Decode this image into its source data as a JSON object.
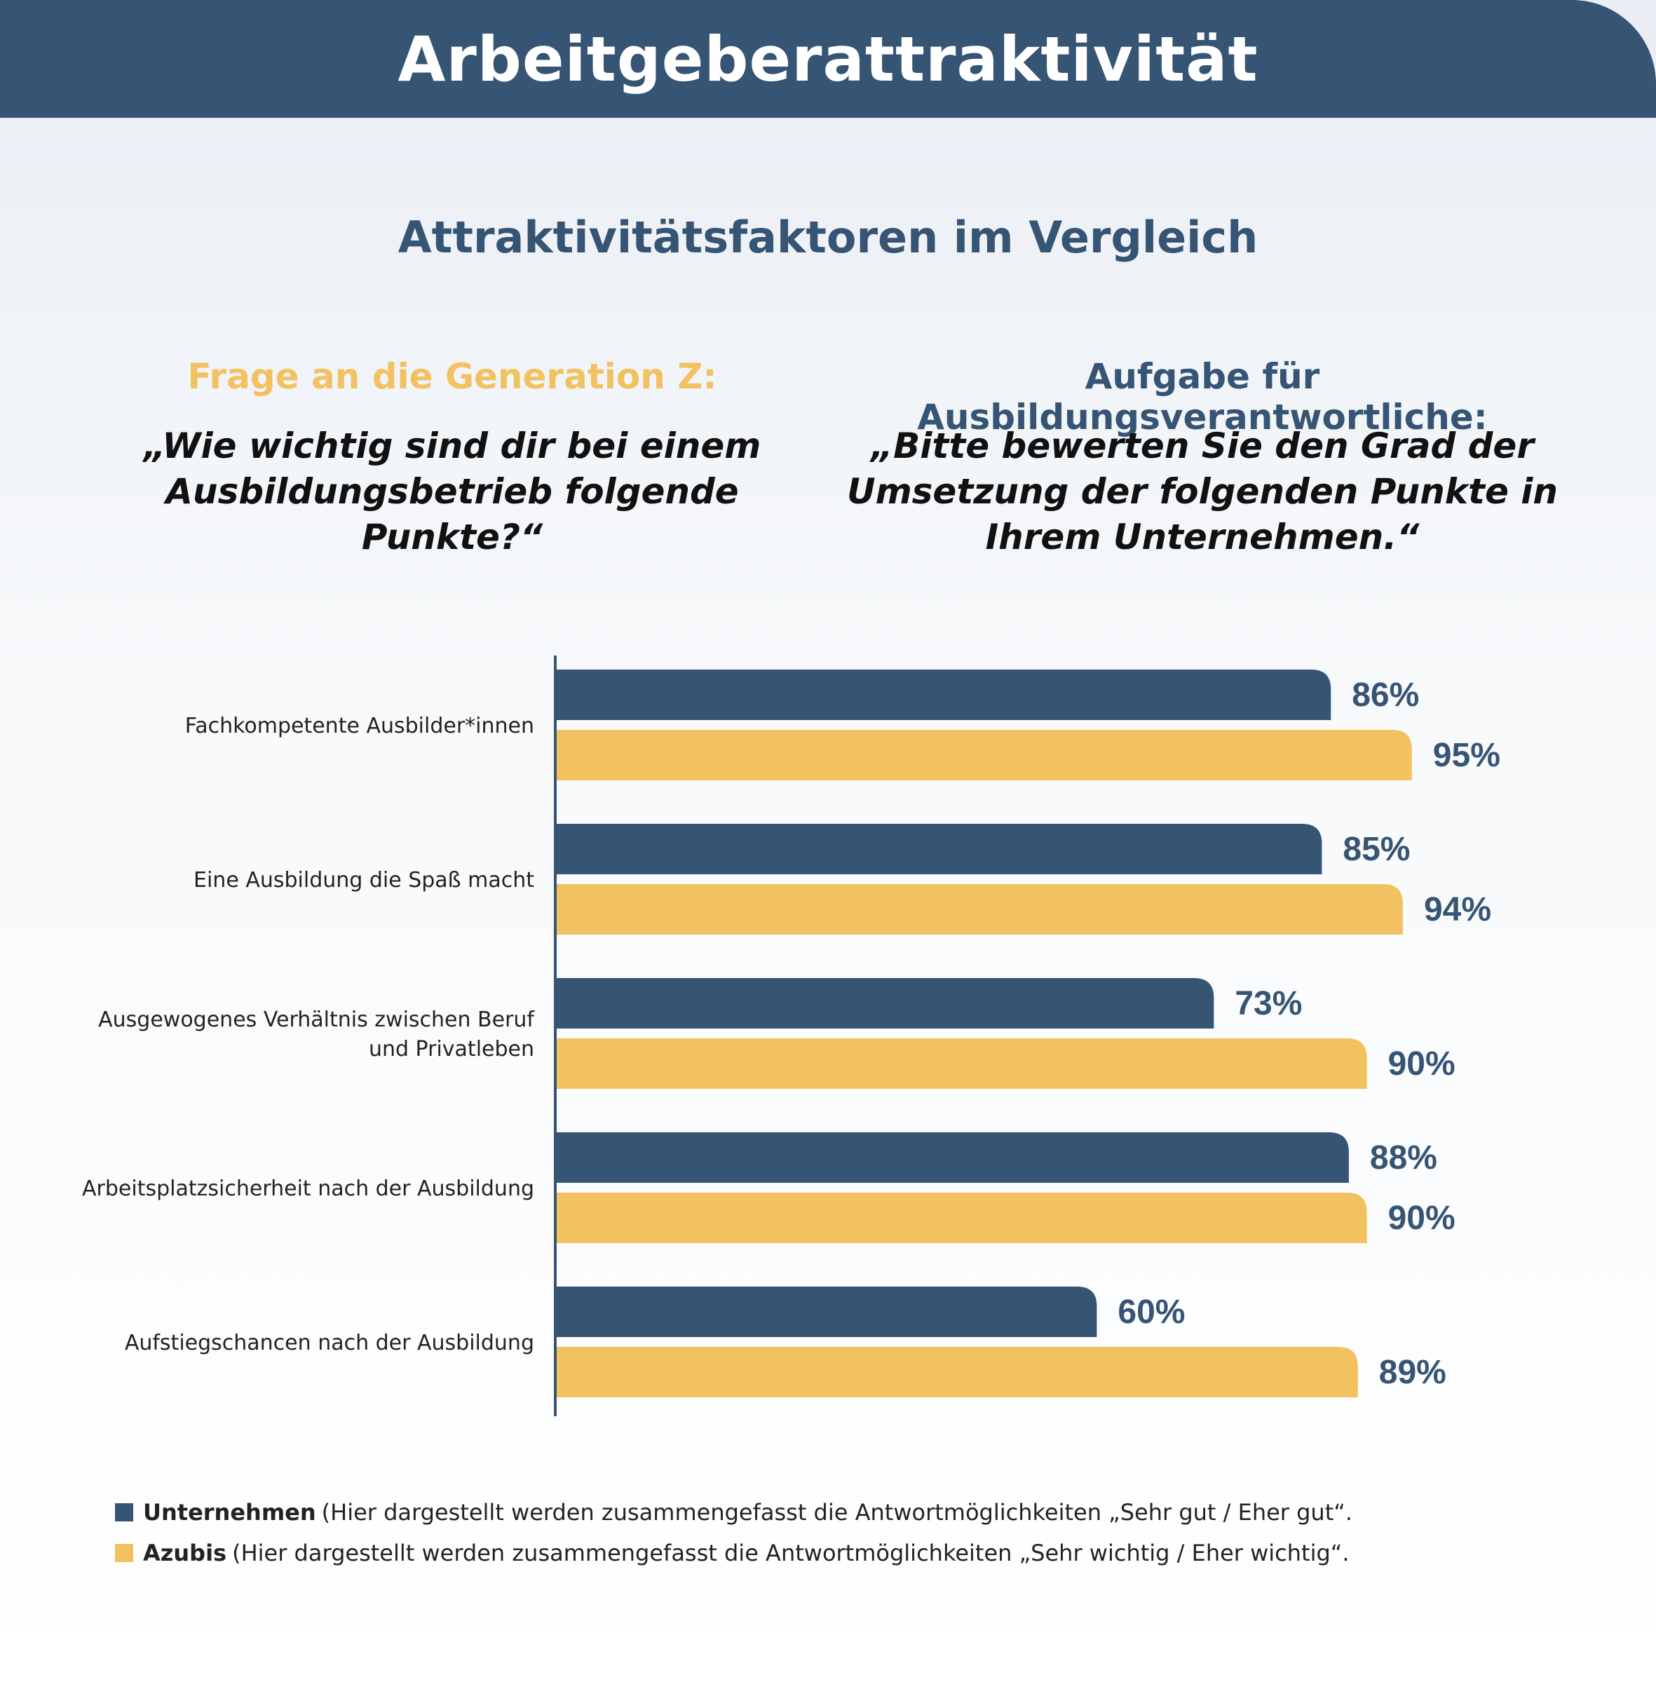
{
  "header": {
    "title": "Arbeitgeberattraktivität"
  },
  "subtitle": "Attraktivitätsfaktoren im Vergleich",
  "left_column": {
    "heading": "Frage an die Generation Z:",
    "question_lines": [
      "„Wie wichtig sind dir bei einem",
      "Ausbildungsbetrieb folgende Punkte?“"
    ]
  },
  "right_column": {
    "heading": "Aufgabe für Ausbildungsverantwortliche:",
    "question_lines": [
      "„Bitte bewerten Sie den Grad der",
      "Umsetzung der folgenden Punkte in",
      "Ihrem Unternehmen.“"
    ]
  },
  "colors": {
    "unternehmen": "#365474",
    "azubis": "#f2c160",
    "accent": "#365474"
  },
  "chart_data": {
    "type": "bar",
    "orientation": "horizontal",
    "categories": [
      "Fachkompetente Ausbilder*innen",
      "Eine Ausbildung die Spaß macht",
      "Ausgewogenes Verhältnis zwischen Beruf und Privatleben",
      "Arbeitsplatzsicherheit nach der Ausbildung",
      "Aufstiegschancen nach der Ausbildung"
    ],
    "category_label_lines": [
      [
        "Fachkompetente Ausbilder*innen"
      ],
      [
        "Eine Ausbildung die Spaß macht"
      ],
      [
        "Ausgewogenes Verhältnis zwischen Beruf",
        "und Privatleben"
      ],
      [
        "Arbeitsplatzsicherheit nach der Ausbildung"
      ],
      [
        "Aufstiegschancen nach der Ausbildung"
      ]
    ],
    "series": [
      {
        "name": "Unternehmen",
        "values": [
          86,
          85,
          73,
          88,
          60
        ]
      },
      {
        "name": "Azubis",
        "values": [
          95,
          94,
          90,
          90,
          89
        ]
      }
    ],
    "value_suffix": "%",
    "xlim": [
      0,
      100
    ],
    "grid": false,
    "legend_position": "bottom-left"
  },
  "legend": [
    {
      "name": "Unternehmen",
      "note": "(Hier dargestellt werden zusammengefasst die Antwortmöglichkeiten „Sehr gut / Eher gut“."
    },
    {
      "name": "Azubis",
      "note": "(Hier dargestellt werden zusammengefasst die Antwortmöglichkeiten „Sehr wichtig / Eher wichtig“."
    }
  ]
}
